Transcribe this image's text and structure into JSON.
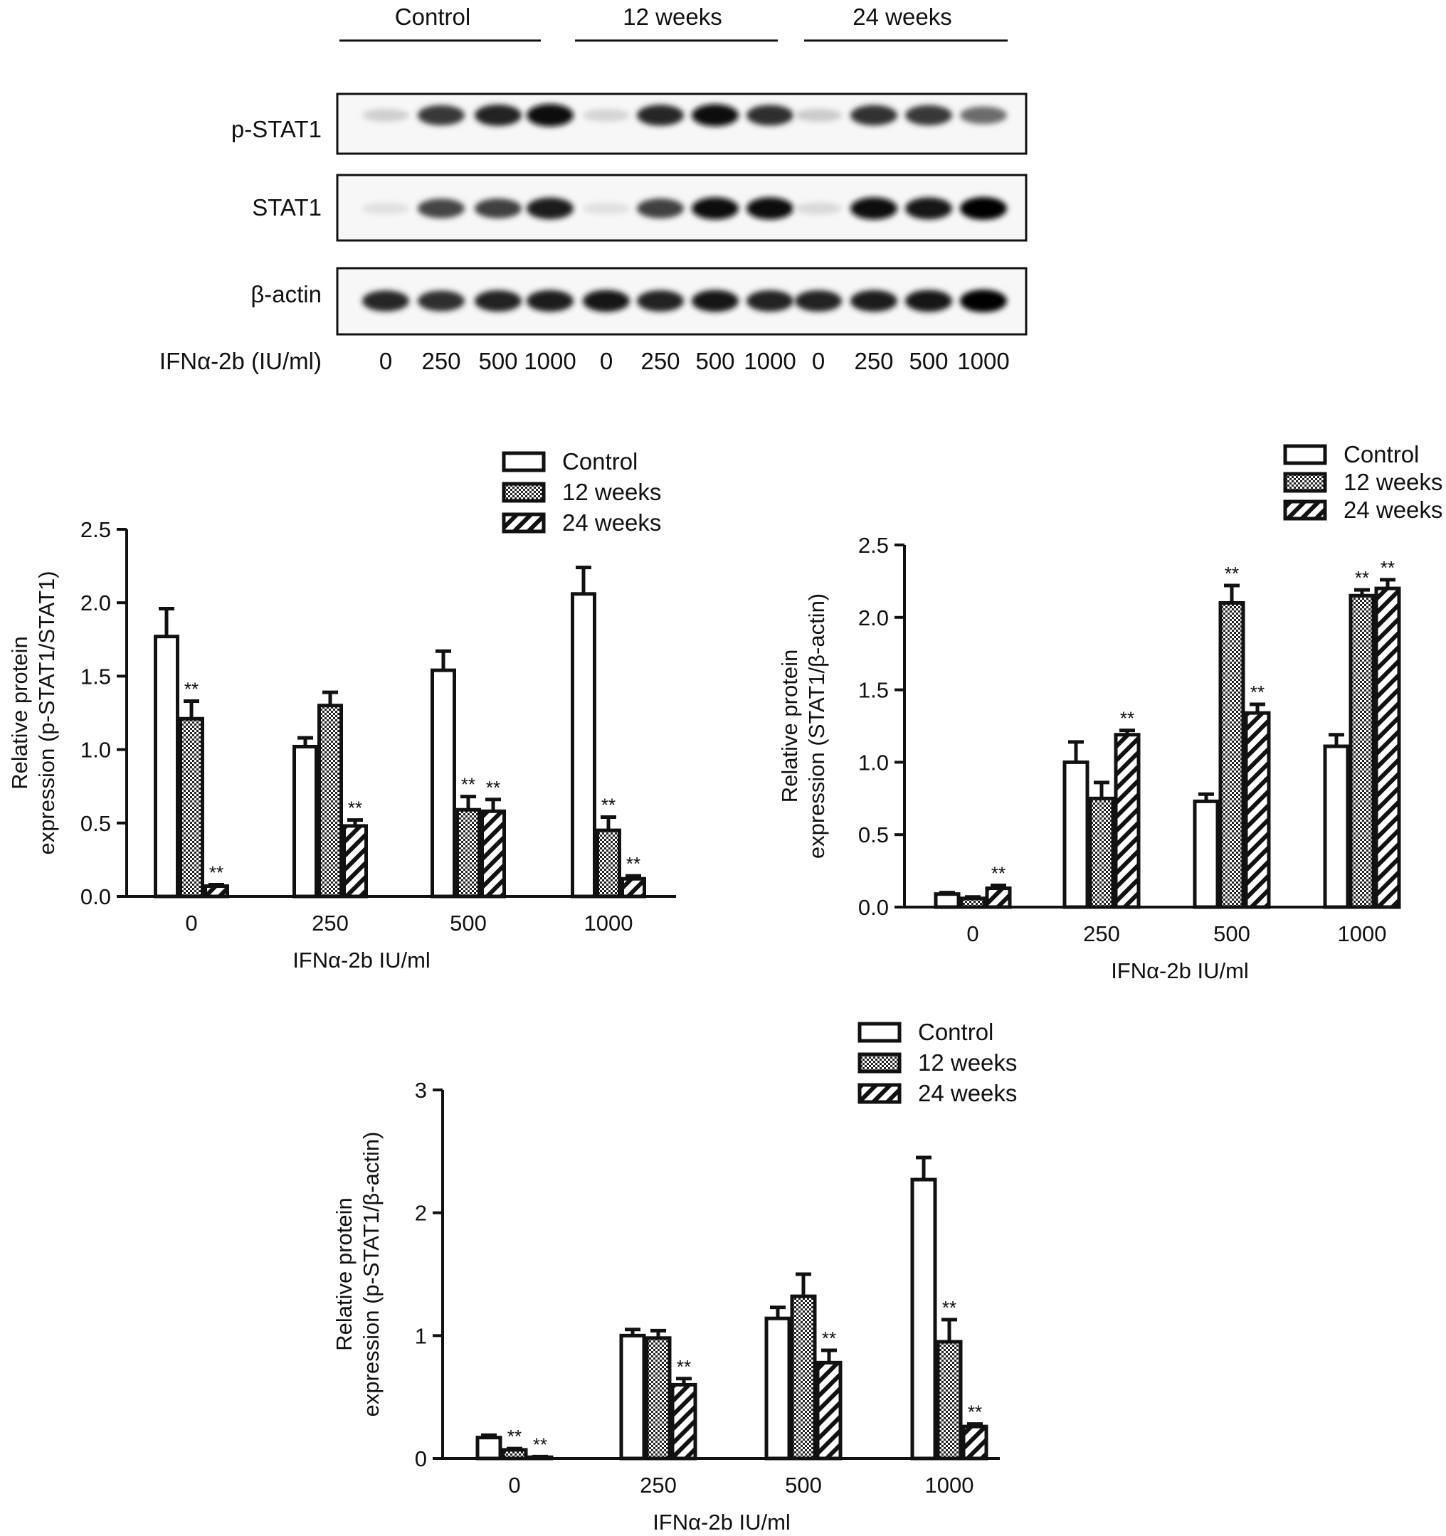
{
  "blot": {
    "groups": [
      "Control",
      "12 weeks",
      "24 weeks"
    ],
    "rows": [
      "p-STAT1",
      "STAT1",
      "β-actin"
    ],
    "dose_label": "IFNα-2b (IU/ml)",
    "doses": [
      "0",
      "250",
      "500",
      "1000",
      "0",
      "250",
      "500",
      "1000",
      "0",
      "250",
      "500",
      "1000"
    ],
    "band_intensity": {
      "p-STAT1": [
        0.12,
        0.78,
        0.88,
        0.98,
        0.1,
        0.85,
        0.95,
        0.82,
        0.14,
        0.8,
        0.78,
        0.55
      ],
      "STAT1": [
        0.05,
        0.72,
        0.75,
        0.9,
        0.05,
        0.75,
        0.95,
        0.95,
        0.08,
        0.95,
        0.92,
        1.0
      ],
      "β-actin": [
        0.85,
        0.82,
        0.88,
        0.9,
        0.92,
        0.88,
        0.92,
        0.88,
        0.88,
        0.9,
        0.92,
        1.0
      ]
    }
  },
  "chart_data": [
    {
      "type": "bar",
      "categories": [
        "0",
        "250",
        "500",
        "1000"
      ],
      "xlabel": "IFNα-2b IU/ml",
      "ylabel_lines": [
        "Relative protein",
        "expression (p-STAT1/STAT1)"
      ],
      "ylim": [
        0,
        2.5
      ],
      "yticks": [
        "0.0",
        "0.5",
        "1.0",
        "1.5",
        "2.0",
        "2.5"
      ],
      "legend": [
        "Control",
        "12 weeks",
        "24 weeks"
      ],
      "series": [
        {
          "name": "Control",
          "values": [
            1.77,
            1.02,
            1.54,
            2.06
          ],
          "errors": [
            0.19,
            0.06,
            0.13,
            0.18
          ],
          "sig": [
            "",
            "",
            "",
            ""
          ]
        },
        {
          "name": "12 weeks",
          "values": [
            1.21,
            1.3,
            0.59,
            0.45
          ],
          "errors": [
            0.12,
            0.09,
            0.09,
            0.09
          ],
          "sig": [
            "**",
            "",
            "**",
            "**"
          ]
        },
        {
          "name": "24 weeks",
          "values": [
            0.07,
            0.48,
            0.58,
            0.12
          ],
          "errors": [
            0.01,
            0.04,
            0.08,
            0.02
          ],
          "sig": [
            "**",
            "**",
            "**",
            "**"
          ]
        }
      ]
    },
    {
      "type": "bar",
      "categories": [
        "0",
        "250",
        "500",
        "1000"
      ],
      "xlabel": "IFNα-2b IU/ml",
      "ylabel_lines": [
        "Relative protein",
        "expression (STAT1/β-actin)"
      ],
      "ylim": [
        0,
        2.5
      ],
      "yticks": [
        "0.0",
        "0.5",
        "1.0",
        "1.5",
        "2.0",
        "2.5"
      ],
      "legend": [
        "Control",
        "12 weeks",
        "24 weeks"
      ],
      "series": [
        {
          "name": "Control",
          "values": [
            0.09,
            1.0,
            0.73,
            1.11
          ],
          "errors": [
            0.01,
            0.14,
            0.05,
            0.08
          ],
          "sig": [
            "",
            "",
            "",
            ""
          ]
        },
        {
          "name": "12 weeks",
          "values": [
            0.06,
            0.75,
            2.1,
            2.15
          ],
          "errors": [
            0.01,
            0.11,
            0.12,
            0.04
          ],
          "sig": [
            "",
            "",
            "**",
            "**"
          ]
        },
        {
          "name": "24 weeks",
          "values": [
            0.13,
            1.19,
            1.34,
            2.2
          ],
          "errors": [
            0.02,
            0.03,
            0.06,
            0.06
          ],
          "sig": [
            "**",
            "**",
            "**",
            "**"
          ]
        }
      ]
    },
    {
      "type": "bar",
      "categories": [
        "0",
        "250",
        "500",
        "1000"
      ],
      "xlabel": "IFNα-2b IU/ml",
      "ylabel_lines": [
        "Relative protein",
        "expression (p-STAT1/β-actin)"
      ],
      "ylim": [
        0,
        3
      ],
      "yticks": [
        "0",
        "1",
        "2",
        "3"
      ],
      "legend": [
        "Control",
        "12 weeks",
        "24 weeks"
      ],
      "series": [
        {
          "name": "Control",
          "values": [
            0.17,
            1.0,
            1.14,
            2.27
          ],
          "errors": [
            0.02,
            0.05,
            0.09,
            0.18
          ],
          "sig": [
            "",
            "",
            "",
            ""
          ]
        },
        {
          "name": "12 weeks",
          "values": [
            0.07,
            0.98,
            1.32,
            0.95
          ],
          "errors": [
            0.01,
            0.06,
            0.18,
            0.18
          ],
          "sig": [
            "**",
            "",
            "",
            "**"
          ]
        },
        {
          "name": "24 weeks",
          "values": [
            0.01,
            0.6,
            0.78,
            0.26
          ],
          "errors": [
            0.005,
            0.05,
            0.1,
            0.02
          ],
          "sig": [
            "**",
            "**",
            "**",
            "**"
          ]
        }
      ]
    }
  ]
}
